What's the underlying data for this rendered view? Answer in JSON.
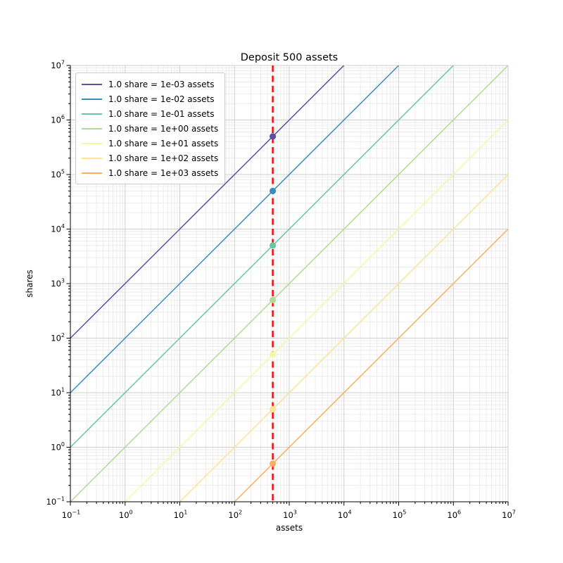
{
  "chart_data": {
    "type": "line",
    "title": "Deposit 500 assets",
    "xlabel": "assets",
    "ylabel": "shares",
    "xscale": "log",
    "yscale": "log",
    "xlim": [
      0.1,
      10000000
    ],
    "ylim": [
      0.1,
      10000000
    ],
    "x_tick_exponents": [
      -1,
      0,
      1,
      2,
      3,
      4,
      5,
      6,
      7
    ],
    "y_tick_exponents": [
      -1,
      0,
      1,
      2,
      3,
      4,
      5,
      6,
      7
    ],
    "grid": {
      "major": true,
      "minor": true
    },
    "legend_position": "upper left",
    "colors": {
      "background": "#ffffff",
      "spine": "#000000",
      "tick_text": "#000000",
      "grid_major": "#cfcfcf",
      "grid_minor": "#e9e9e9"
    },
    "series": [
      {
        "label": "1.0 share = 1e-03 assets",
        "color": "#5e4fa2",
        "assets_per_share": 0.001,
        "marker": {
          "x": 500,
          "y": 500000
        }
      },
      {
        "label": "1.0 share = 1e-02 assets",
        "color": "#3b8ebc",
        "assets_per_share": 0.01,
        "marker": {
          "x": 500,
          "y": 50000
        }
      },
      {
        "label": "1.0 share = 1e-01 assets",
        "color": "#69c5a4",
        "assets_per_share": 0.1,
        "marker": {
          "x": 500,
          "y": 5000
        }
      },
      {
        "label": "1.0 share = 1e+00 assets",
        "color": "#b0dc91",
        "assets_per_share": 1,
        "marker": {
          "x": 500,
          "y": 500
        }
      },
      {
        "label": "1.0 share = 1e+01 assets",
        "color": "#f2f9a5",
        "assets_per_share": 10,
        "marker": {
          "x": 500,
          "y": 50
        }
      },
      {
        "label": "1.0 share = 1e+02 assets",
        "color": "#fee392",
        "assets_per_share": 100,
        "marker": {
          "x": 500,
          "y": 5
        }
      },
      {
        "label": "1.0 share = 1e+03 assets",
        "color": "#fdae61",
        "assets_per_share": 1000,
        "marker": {
          "x": 500,
          "y": 0.5
        }
      }
    ],
    "deposit_vline": {
      "x": 500,
      "color": "#ff0000",
      "style": "dashed"
    }
  }
}
